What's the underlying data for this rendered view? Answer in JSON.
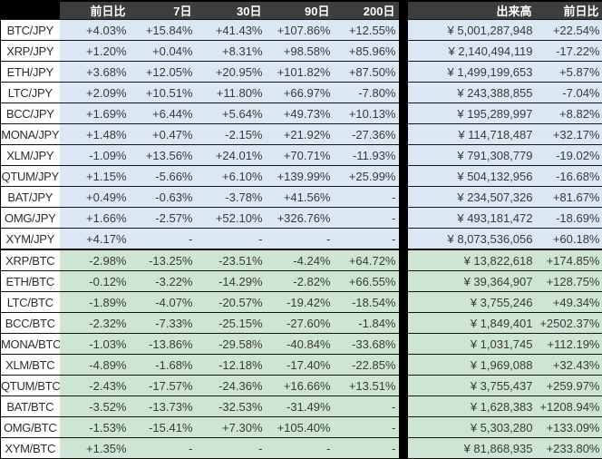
{
  "chart_data": {
    "type": "table",
    "title": "",
    "columns": [
      "",
      "前日比",
      "7日",
      "30日",
      "90日",
      "200日",
      "出来高",
      "前日比"
    ],
    "groups": [
      {
        "id": "jpy",
        "rows": [
          [
            "BTC/JPY",
            "+4.03%",
            "+15.84%",
            "+41.43%",
            "+107.86%",
            "+12.55%",
            "¥ 5,001,287,948",
            "+22.54%"
          ],
          [
            "XRP/JPY",
            "+1.20%",
            "+0.04%",
            "+8.31%",
            "+98.58%",
            "+85.96%",
            "¥ 2,140,494,119",
            "-17.22%"
          ],
          [
            "ETH/JPY",
            "+3.68%",
            "+12.05%",
            "+20.95%",
            "+101.82%",
            "+87.50%",
            "¥ 1,499,199,653",
            "+5.87%"
          ],
          [
            "LTC/JPY",
            "+2.09%",
            "+10.51%",
            "+11.80%",
            "+66.97%",
            "-7.80%",
            "¥ 243,388,855",
            "-7.04%"
          ],
          [
            "BCC/JPY",
            "+1.69%",
            "+6.44%",
            "+5.64%",
            "+49.73%",
            "+10.13%",
            "¥ 195,289,997",
            "+8.82%"
          ],
          [
            "MONA/JPY",
            "+1.48%",
            "+0.47%",
            "-2.15%",
            "+21.92%",
            "-27.36%",
            "¥ 114,718,487",
            "+32.17%"
          ],
          [
            "XLM/JPY",
            "-1.09%",
            "+13.56%",
            "+24.01%",
            "+70.71%",
            "-11.93%",
            "¥ 791,308,779",
            "-19.02%"
          ],
          [
            "QTUM/JPY",
            "+1.15%",
            "-5.66%",
            "+6.10%",
            "+139.99%",
            "+25.99%",
            "¥ 504,132,956",
            "-16.68%"
          ],
          [
            "BAT/JPY",
            "+0.49%",
            "-0.63%",
            "-3.78%",
            "+41.56%",
            "-",
            "¥ 234,507,326",
            "+81.67%"
          ],
          [
            "OMG/JPY",
            "+1.66%",
            "-2.57%",
            "+52.10%",
            "+326.76%",
            "-",
            "¥ 493,181,472",
            "-18.69%"
          ],
          [
            "XYM/JPY",
            "+4.17%",
            "-",
            "-",
            "-",
            "-",
            "¥ 8,073,536,056",
            "+60.18%"
          ]
        ]
      },
      {
        "id": "btc",
        "rows": [
          [
            "XRP/BTC",
            "-2.98%",
            "-13.25%",
            "-23.51%",
            "-4.24%",
            "+64.72%",
            "¥ 13,822,618",
            "+174.85%"
          ],
          [
            "ETH/BTC",
            "-0.12%",
            "-3.22%",
            "-14.29%",
            "-2.82%",
            "+66.55%",
            "¥ 39,364,907",
            "+128.75%"
          ],
          [
            "LTC/BTC",
            "-1.89%",
            "-4.07%",
            "-20.57%",
            "-19.42%",
            "-18.54%",
            "¥ 3,755,246",
            "+49.34%"
          ],
          [
            "BCC/BTC",
            "-2.32%",
            "-7.33%",
            "-25.15%",
            "-27.60%",
            "-1.84%",
            "¥ 1,849,401",
            "+2502.37%"
          ],
          [
            "MONA/BTC",
            "-1.03%",
            "-13.86%",
            "-29.58%",
            "-40.84%",
            "-33.68%",
            "¥ 1,031,745",
            "+112.19%"
          ],
          [
            "XLM/BTC",
            "-4.89%",
            "-1.68%",
            "-12.18%",
            "-17.40%",
            "-22.85%",
            "¥ 1,969,088",
            "+32.43%"
          ],
          [
            "QTUM/BTC",
            "-2.43%",
            "-17.57%",
            "-24.36%",
            "+16.66%",
            "+13.51%",
            "¥ 3,755,437",
            "+259.97%"
          ],
          [
            "BAT/BTC",
            "-3.52%",
            "-13.73%",
            "-32.53%",
            "-31.49%",
            "-",
            "¥ 1,628,383",
            "+1208.94%"
          ],
          [
            "OMG/BTC",
            "-1.53%",
            "-15.41%",
            "+7.30%",
            "+105.40%",
            "-",
            "¥ 5,303,280",
            "+133.09%"
          ],
          [
            "XYM/BTC",
            "+1.35%",
            "-",
            "-",
            "-",
            "-",
            "¥ 81,868,935",
            "+233.80%"
          ]
        ]
      }
    ],
    "layout": {
      "grid": "horizontal-row-lines",
      "group_divider": "thick-black-line",
      "column_separator": "black-vertical-bar"
    }
  },
  "colors": {
    "header_bg": "#3d3d3d",
    "header_text": "#ffffff",
    "corner_bg": "#000000",
    "separator_bg": "#000000",
    "jpy_row_bg": "#dbe7f2",
    "btc_row_bg": "#cde5d2",
    "pair_cell_bg": "#ffffff",
    "text": "#3a3a3a",
    "border": "#141414"
  }
}
